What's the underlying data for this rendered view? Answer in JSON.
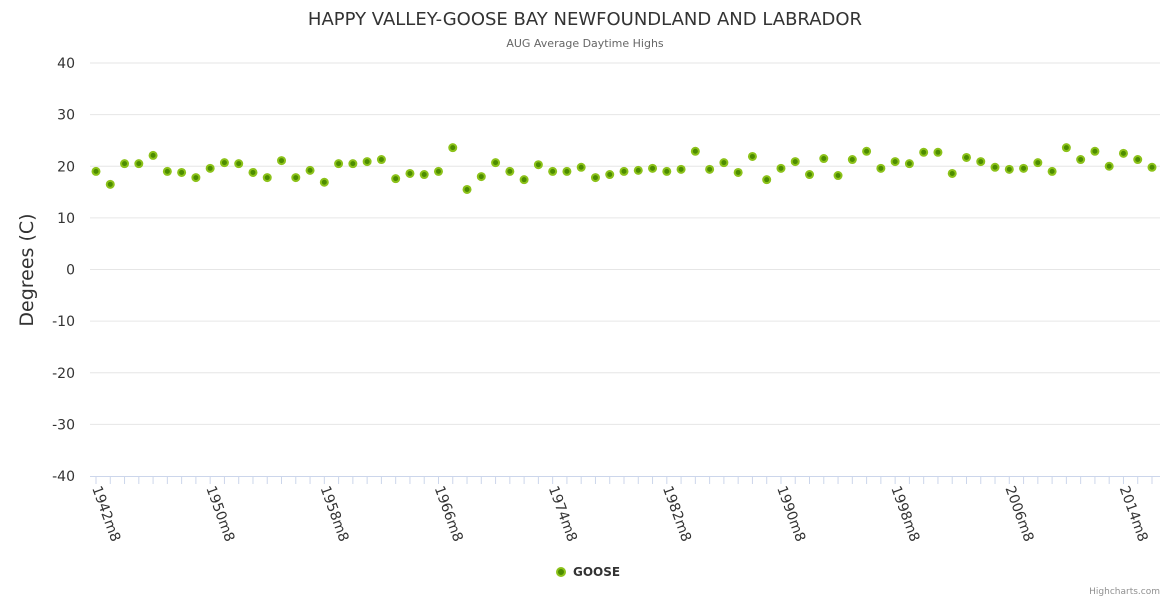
{
  "chart_data": {
    "type": "scatter",
    "title": "HAPPY VALLEY-GOOSE BAY NEWFOUNDLAND AND LABRADOR",
    "subtitle": "AUG Average Daytime Highs",
    "xlabel": "",
    "ylabel": "Degrees (C)",
    "ylim": [
      -40,
      40
    ],
    "yticks": [
      40,
      30,
      20,
      10,
      0,
      -10,
      -20,
      -30,
      -40
    ],
    "grid": true,
    "legend_position": "bottom-center",
    "x_start_year": 1942,
    "x_tick_labels": [
      "1942m8",
      "1950m8",
      "1958m8",
      "1966m8",
      "1974m8",
      "1982m8",
      "1990m8",
      "1998m8",
      "2006m8",
      "2014m8"
    ],
    "series": [
      {
        "name": "GOOSE",
        "color": "#7cb500",
        "values": [
          19.0,
          16.5,
          20.5,
          20.5,
          22.1,
          19.0,
          18.8,
          17.8,
          19.6,
          20.7,
          20.5,
          18.8,
          17.8,
          21.1,
          17.8,
          19.2,
          16.9,
          20.5,
          20.5,
          20.9,
          21.3,
          17.6,
          18.6,
          18.4,
          19.0,
          23.6,
          15.5,
          18.0,
          20.7,
          19.0,
          17.4,
          20.3,
          19.0,
          19.0,
          19.8,
          17.8,
          18.4,
          19.0,
          19.2,
          19.6,
          19.0,
          19.4,
          22.9,
          19.4,
          20.7,
          18.8,
          21.9,
          17.4,
          19.6,
          20.9,
          18.4,
          21.5,
          18.2,
          21.3,
          22.9,
          19.6,
          20.9,
          20.5,
          22.7,
          22.7,
          18.6,
          21.7,
          20.9,
          19.8,
          19.4,
          19.6,
          20.7,
          19.0,
          23.6,
          21.3,
          22.9,
          20.0,
          22.5,
          21.3,
          19.8
        ]
      }
    ],
    "credit": "Highcharts.com"
  }
}
